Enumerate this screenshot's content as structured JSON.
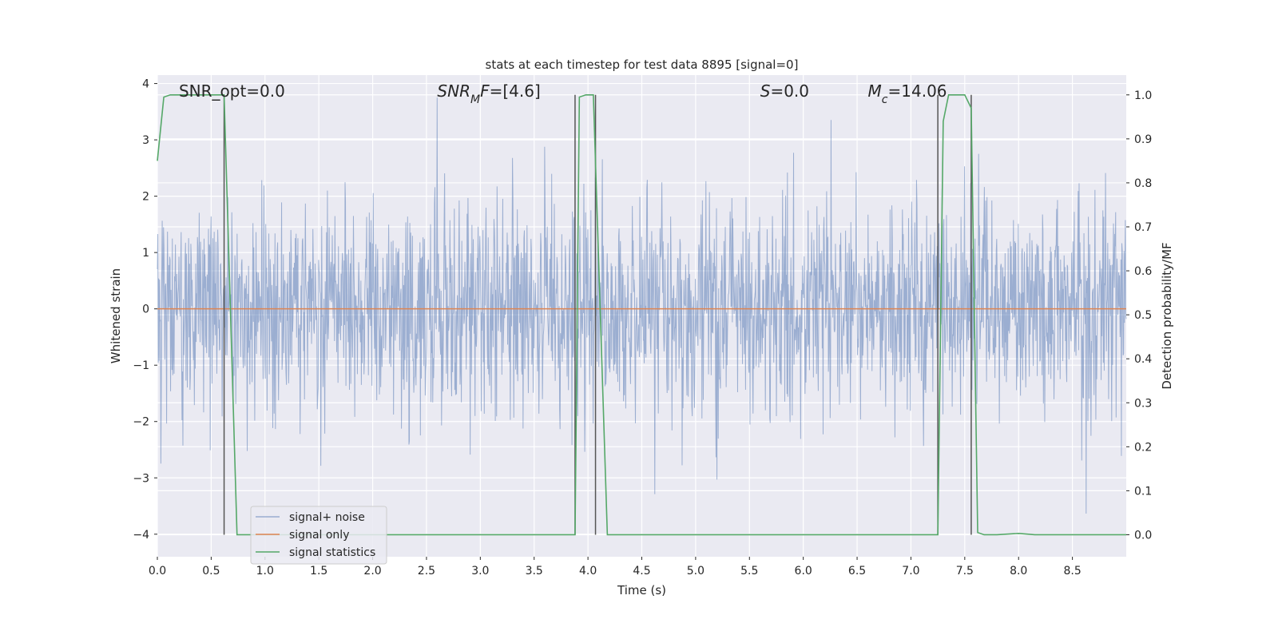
{
  "chart_data": {
    "type": "line",
    "title": "stats at each timestep for test data 8895 [signal=0]",
    "xlabel": "Time (s)",
    "ylabel": "Whitened strain",
    "y2label": "Detection probability/MF",
    "xlim": [
      0.0,
      9.0
    ],
    "ylim": [
      -4.4,
      4.15
    ],
    "y2lim": [
      -0.05,
      1.045
    ],
    "xticks": [
      0.0,
      0.5,
      1.0,
      1.5,
      2.0,
      2.5,
      3.0,
      3.5,
      4.0,
      4.5,
      5.0,
      5.5,
      6.0,
      6.5,
      7.0,
      7.5,
      8.0,
      8.5
    ],
    "xtick_labels": [
      "0.0",
      "0.5",
      "1.0",
      "1.5",
      "2.0",
      "2.5",
      "3.0",
      "3.5",
      "4.0",
      "4.5",
      "5.0",
      "5.5",
      "6.0",
      "6.5",
      "7.0",
      "7.5",
      "8.0",
      "8.5"
    ],
    "yticks": [
      -4,
      -3,
      -2,
      -1,
      0,
      1,
      2,
      3,
      4
    ],
    "ytick_labels": [
      "−4",
      "−3",
      "−2",
      "−1",
      "0",
      "1",
      "2",
      "3",
      "4"
    ],
    "y2ticks": [
      0.0,
      0.1,
      0.2,
      0.3,
      0.4,
      0.5,
      0.6,
      0.7,
      0.8,
      0.9,
      1.0
    ],
    "y2tick_labels": [
      "0.0",
      "0.1",
      "0.2",
      "0.3",
      "0.4",
      "0.5",
      "0.6",
      "0.7",
      "0.8",
      "0.9",
      "1.0"
    ],
    "grid": true,
    "legend_position": "lower-left",
    "series": [
      {
        "name": "signal+ noise",
        "axis": "left",
        "color": "#4c72b0",
        "noise_band_typical": [
          -1.8,
          1.8
        ],
        "noise_peaks_max": 3.75,
        "noise_peaks_min": -4.0
      },
      {
        "name": "signal only",
        "axis": "left",
        "color": "#dd8452",
        "x": [
          0.0,
          9.0
        ],
        "y": [
          0.0,
          0.0
        ]
      },
      {
        "name": "signal statistics",
        "axis": "right",
        "color": "#55a868",
        "x": [
          0.0,
          0.06,
          0.12,
          0.55,
          0.62,
          0.74,
          0.8,
          3.85,
          3.88,
          3.92,
          3.98,
          4.05,
          4.18,
          4.3,
          7.2,
          7.25,
          7.3,
          7.35,
          7.42,
          7.5,
          7.56,
          7.62,
          7.68,
          7.8,
          8.0,
          8.15,
          9.0
        ],
        "y": [
          0.85,
          0.995,
          1.0,
          1.0,
          1.0,
          0.0,
          0.0,
          0.0,
          0.0,
          0.995,
          1.0,
          1.0,
          0.0,
          0.0,
          0.0,
          0.0,
          0.94,
          1.0,
          1.0,
          1.0,
          0.97,
          0.005,
          0.0,
          0.0,
          0.003,
          0.0,
          0.0
        ]
      }
    ],
    "vertical_markers": [
      {
        "x": 0.62,
        "y_from": 0.0,
        "y_to": 1.0
      },
      {
        "x": 3.88,
        "y_from": 0.0,
        "y_to": 1.0
      },
      {
        "x": 4.07,
        "y_from": 0.0,
        "y_to": 1.0
      },
      {
        "x": 7.25,
        "y_from": 0.0,
        "y_to": 1.0
      },
      {
        "x": 7.56,
        "y_from": 0.0,
        "y_to": 1.0
      }
    ],
    "annotations": [
      {
        "x": 0.2,
        "segments": [
          {
            "text": "SNR_opt=0.0",
            "style": "normal"
          }
        ]
      },
      {
        "x": 2.6,
        "segments": [
          {
            "text": "SNR",
            "style": "italic"
          },
          {
            "text": "M",
            "style": "italic-sub"
          },
          {
            "text": "F=[4.6]",
            "style": "mixed"
          }
        ]
      },
      {
        "x": 5.6,
        "segments": [
          {
            "text": "S",
            "style": "italic"
          },
          {
            "text": "=0.0",
            "style": "normal"
          }
        ]
      },
      {
        "x": 6.6,
        "segments": [
          {
            "text": "M",
            "style": "italic"
          },
          {
            "text": "c",
            "style": "italic-sub"
          },
          {
            "text": "=14.06",
            "style": "normal"
          }
        ]
      }
    ],
    "colors": {
      "plot_background": "#eaeaf2",
      "grid": "#ffffff",
      "marker_line": "#555555"
    }
  }
}
